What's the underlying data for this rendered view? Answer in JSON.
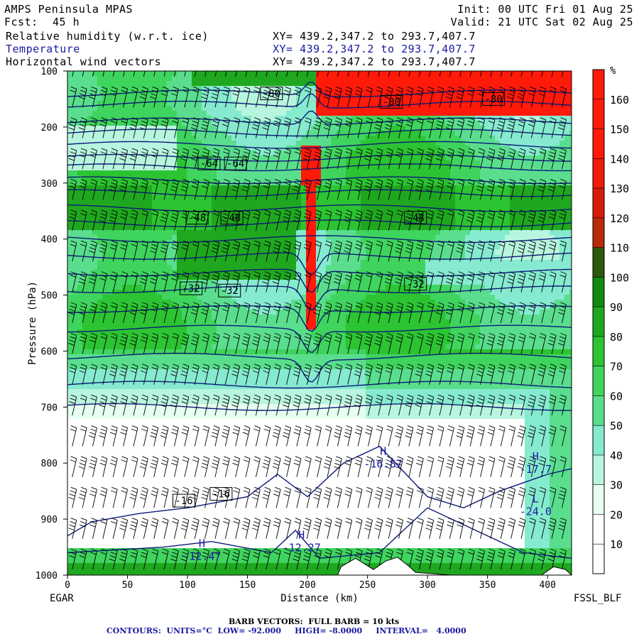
{
  "header": {
    "model": "AMPS Peninsula MPAS",
    "forecast_label": "Fcst:",
    "forecast_hours": "45 h",
    "init": "Init: 00 UTC Fri 01 Aug 25",
    "valid": "Valid: 21 UTC Sat 02 Aug 25",
    "fields": [
      {
        "name": "Relative humidity (w.r.t. ice)",
        "xy": "XY= 439.2,347.2 to 293.7,407.7",
        "color": "#000000"
      },
      {
        "name": "Temperature",
        "xy": "XY= 439.2,347.2 to 293.7,407.7",
        "color": "#1a1aa0"
      },
      {
        "name": "Horizontal wind vectors",
        "xy": "XY= 439.2,347.2 to 293.7,407.7",
        "color": "#000000"
      }
    ]
  },
  "footer": {
    "barb_note": "BARB VECTORS:  FULL BARB = 10 kts",
    "contour_note": "CONTOURS:  UNITS=°C  LOW= -92.000     HIGH= -8.0000     INTERVAL=   4.0000"
  },
  "chart_data": {
    "type": "heatmap",
    "xlabel": "Distance (km)",
    "ylabel": "Pressure (hPa)",
    "xlim": [
      0,
      420
    ],
    "ylim": [
      1000,
      100
    ],
    "x_ticks": [
      0,
      50,
      100,
      150,
      200,
      250,
      300,
      350,
      400
    ],
    "y_ticks": [
      100,
      200,
      300,
      400,
      500,
      600,
      700,
      800,
      900,
      1000
    ],
    "left_endpoint": "EGAR",
    "right_endpoint": "FSSL_BLF",
    "colorbar": {
      "unit": "%",
      "levels": [
        10,
        20,
        30,
        40,
        50,
        60,
        70,
        80,
        90,
        100,
        110,
        120,
        130,
        140,
        150,
        160
      ],
      "colors": [
        "#ffffff",
        "#ffffff",
        "#e6fff0",
        "#b8f5de",
        "#86ead0",
        "#5ade8e",
        "#3fd45e",
        "#2cc432",
        "#1fa81f",
        "#118a11",
        "#2a5a0a",
        "#b82a0a",
        "#d81a0a",
        "#ee1a0a",
        "#ff1a0a",
        "#ff1a0a",
        "#ff1a0a"
      ]
    },
    "temperature_contours": {
      "units": "°C",
      "low": -92,
      "high": -8,
      "interval": 4,
      "labels": [
        {
          "text": "-80",
          "x": 170,
          "p": 140
        },
        {
          "text": "-80",
          "x": 270,
          "p": 155
        },
        {
          "text": "-80",
          "x": 355,
          "p": 150
        },
        {
          "text": "-64",
          "x": 118,
          "p": 265
        },
        {
          "text": "-64",
          "x": 140,
          "p": 265
        },
        {
          "text": "-48",
          "x": 108,
          "p": 362
        },
        {
          "text": "-48",
          "x": 137,
          "p": 362
        },
        {
          "text": "-48",
          "x": 290,
          "p": 362
        },
        {
          "text": "-32",
          "x": 103,
          "p": 488
        },
        {
          "text": "-32",
          "x": 135,
          "p": 492
        },
        {
          "text": "-32",
          "x": 290,
          "p": 480
        },
        {
          "text": "-16",
          "x": 97,
          "p": 867
        },
        {
          "text": "-16",
          "x": 128,
          "p": 855
        }
      ],
      "extrema": [
        {
          "kind": "H",
          "value": "-16.87",
          "x": 263,
          "p": 795
        },
        {
          "kind": "H",
          "value": "-17.7",
          "x": 390,
          "p": 805
        },
        {
          "kind": "L",
          "value": "-24.0",
          "x": 390,
          "p": 880
        },
        {
          "kind": "H",
          "value": "-12.27",
          "x": 195,
          "p": 945
        },
        {
          "kind": "H",
          "value": "-12.47",
          "x": 112,
          "p": 960
        }
      ]
    },
    "wind_barbs": {
      "full_barb_kts": 10
    }
  }
}
